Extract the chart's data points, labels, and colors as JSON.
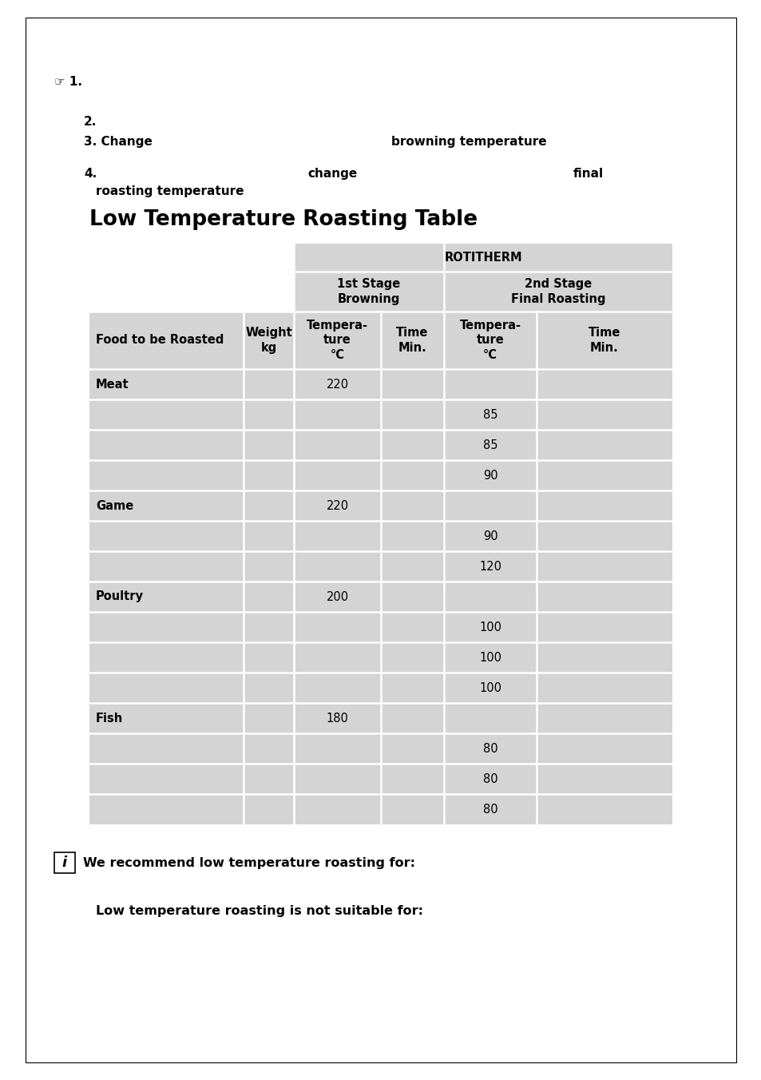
{
  "page_bg": "#ffffff",
  "border_color": "#000000",
  "table_bg": "#d4d4d4",
  "text_color": "#000000",
  "title": "Low Temperature Roasting Table",
  "header_rotitherm": "ROTITHERM",
  "header_1st_stage": "1st Stage\nBrowning",
  "header_2nd_stage": "2nd Stage\nFinal Roasting",
  "col_headers": [
    "Food to be Roasted",
    "Weight\nkg",
    "Tempera-\nture\n°C",
    "Time\nMin.",
    "Tempera-\nture\n°C",
    "Time\nMin."
  ],
  "table_data": [
    [
      "Meat",
      "",
      "220",
      "",
      "",
      ""
    ],
    [
      "",
      "",
      "",
      "",
      "85",
      ""
    ],
    [
      "",
      "",
      "",
      "",
      "85",
      ""
    ],
    [
      "",
      "",
      "",
      "",
      "90",
      ""
    ],
    [
      "Game",
      "",
      "220",
      "",
      "",
      ""
    ],
    [
      "",
      "",
      "",
      "",
      "90",
      ""
    ],
    [
      "",
      "",
      "",
      "",
      "120",
      ""
    ],
    [
      "Poultry",
      "",
      "200",
      "",
      "",
      ""
    ],
    [
      "",
      "",
      "",
      "",
      "100",
      ""
    ],
    [
      "",
      "",
      "",
      "",
      "100",
      ""
    ],
    [
      "",
      "",
      "",
      "",
      "100",
      ""
    ],
    [
      "Fish",
      "",
      "180",
      "",
      "",
      ""
    ],
    [
      "",
      "",
      "",
      "",
      "80",
      ""
    ],
    [
      "",
      "",
      "",
      "",
      "80",
      ""
    ],
    [
      "",
      "",
      "",
      "",
      "80",
      ""
    ]
  ],
  "footer_text1": "We recommend low temperature roasting for:",
  "footer_text2": "Low temperature roasting is not suitable for:"
}
